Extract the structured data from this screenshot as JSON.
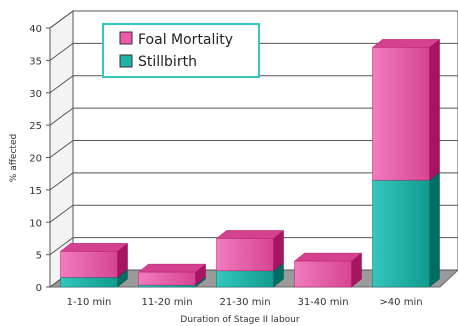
{
  "chart_data": {
    "type": "bar",
    "stacked": true,
    "style": "3d",
    "categories": [
      "1-10 min",
      "11-20 min",
      "21-30 min",
      "31-40 min",
      ">40 min"
    ],
    "series": [
      {
        "name": "Stillbirth",
        "color": "#1fb3a8",
        "values": [
          1.5,
          0.3,
          2.5,
          0,
          16.5
        ]
      },
      {
        "name": "Foal Mortality",
        "color": "#ec5aa8",
        "values": [
          4,
          2,
          5,
          4,
          20.5
        ]
      }
    ],
    "legend_order": [
      "Foal Mortality",
      "Stillbirth"
    ],
    "xlabel": "Duration of Stage II labour",
    "ylabel": "% affected",
    "ylim": [
      0,
      40
    ],
    "yticks": [
      0,
      5,
      10,
      15,
      20,
      25,
      30,
      35,
      40
    ],
    "grid": true,
    "legend_position": "top-left"
  }
}
